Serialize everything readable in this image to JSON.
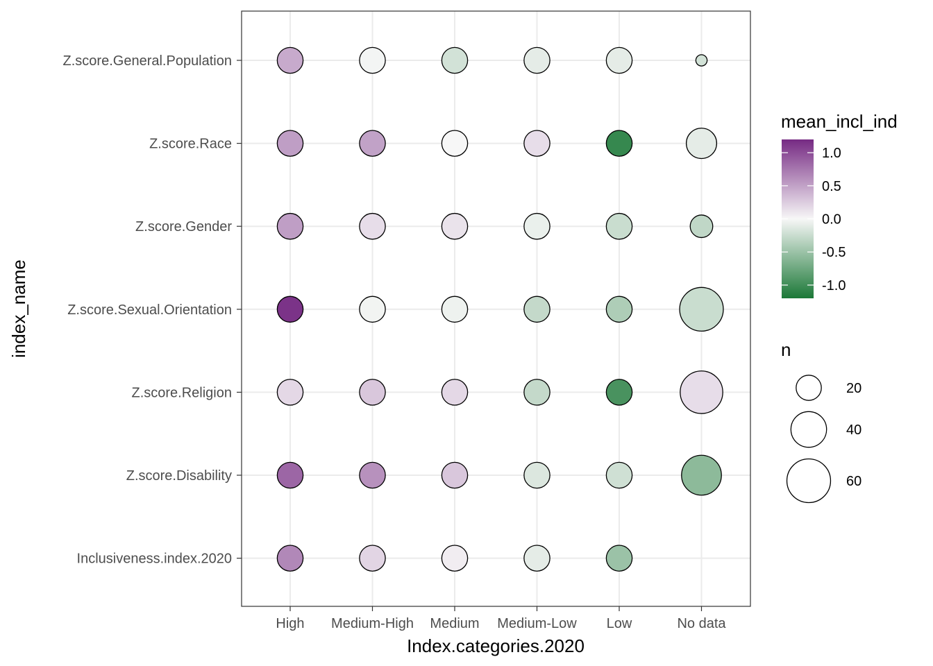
{
  "chart_data": {
    "type": "scatter",
    "title": "",
    "xlabel": "Index.categories.2020",
    "ylabel": "index_name",
    "x_categories": [
      "High",
      "Medium-High",
      "Medium",
      "Medium-Low",
      "Low",
      "No data"
    ],
    "y_categories": [
      "Z.score.General.Population",
      "Z.score.Race",
      "Z.score.Gender",
      "Z.score.Sexual.Orientation",
      "Z.score.Religion",
      "Z.score.Disability",
      "Inclusiveness.index.2020"
    ],
    "grid": true,
    "color_legend": {
      "title": "mean_incl_ind",
      "ticks": [
        1.0,
        0.5,
        0.0,
        -0.5,
        -1.0
      ],
      "tick_labels": [
        "1.0",
        "0.5",
        "0.0",
        "-0.5",
        "-1.0"
      ],
      "range": [
        -1.2,
        1.2
      ],
      "low_color": "#1b7837",
      "mid_color": "#f7f7f7",
      "high_color": "#762a83"
    },
    "size_legend": {
      "title": "n",
      "values": [
        20,
        40,
        60
      ],
      "labels": [
        "20",
        "40",
        "60"
      ],
      "max_n": 64
    },
    "points": [
      {
        "x": "High",
        "y": "Z.score.General.Population",
        "mean_incl_ind": 0.45,
        "n": 21
      },
      {
        "x": "Medium-High",
        "y": "Z.score.General.Population",
        "mean_incl_ind": -0.02,
        "n": 21
      },
      {
        "x": "Medium",
        "y": "Z.score.General.Population",
        "mean_incl_ind": -0.2,
        "n": 21
      },
      {
        "x": "Medium-Low",
        "y": "Z.score.General.Population",
        "mean_incl_ind": -0.1,
        "n": 21
      },
      {
        "x": "Low",
        "y": "Z.score.General.Population",
        "mean_incl_ind": -0.1,
        "n": 21
      },
      {
        "x": "No data",
        "y": "Z.score.General.Population",
        "mean_incl_ind": -0.2,
        "n": 4
      },
      {
        "x": "High",
        "y": "Z.score.Race",
        "mean_incl_ind": 0.52,
        "n": 21
      },
      {
        "x": "Medium-High",
        "y": "Z.score.Race",
        "mean_incl_ind": 0.5,
        "n": 21
      },
      {
        "x": "Medium",
        "y": "Z.score.Race",
        "mean_incl_ind": 0.0,
        "n": 21
      },
      {
        "x": "Medium-Low",
        "y": "Z.score.Race",
        "mean_incl_ind": 0.15,
        "n": 21
      },
      {
        "x": "Low",
        "y": "Z.score.Race",
        "mean_incl_ind": -1.05,
        "n": 21
      },
      {
        "x": "No data",
        "y": "Z.score.Race",
        "mean_incl_ind": -0.1,
        "n": 29
      },
      {
        "x": "High",
        "y": "Z.score.Gender",
        "mean_incl_ind": 0.52,
        "n": 21
      },
      {
        "x": "Medium-High",
        "y": "Z.score.Gender",
        "mean_incl_ind": 0.15,
        "n": 21
      },
      {
        "x": "Medium",
        "y": "Z.score.Gender",
        "mean_incl_ind": 0.12,
        "n": 21
      },
      {
        "x": "Medium-Low",
        "y": "Z.score.Gender",
        "mean_incl_ind": -0.07,
        "n": 21
      },
      {
        "x": "Low",
        "y": "Z.score.Gender",
        "mean_incl_ind": -0.25,
        "n": 21
      },
      {
        "x": "No data",
        "y": "Z.score.Gender",
        "mean_incl_ind": -0.3,
        "n": 16
      },
      {
        "x": "High",
        "y": "Z.score.Sexual.Orientation",
        "mean_incl_ind": 1.15,
        "n": 21
      },
      {
        "x": "Medium-High",
        "y": "Z.score.Sexual.Orientation",
        "mean_incl_ind": -0.03,
        "n": 21
      },
      {
        "x": "Medium",
        "y": "Z.score.Sexual.Orientation",
        "mean_incl_ind": -0.05,
        "n": 21
      },
      {
        "x": "Medium-Low",
        "y": "Z.score.Sexual.Orientation",
        "mean_incl_ind": -0.28,
        "n": 21
      },
      {
        "x": "Low",
        "y": "Z.score.Sexual.Orientation",
        "mean_incl_ind": -0.4,
        "n": 21
      },
      {
        "x": "No data",
        "y": "Z.score.Sexual.Orientation",
        "mean_incl_ind": -0.25,
        "n": 60
      },
      {
        "x": "High",
        "y": "Z.score.Religion",
        "mean_incl_ind": 0.18,
        "n": 21
      },
      {
        "x": "Medium-High",
        "y": "Z.score.Religion",
        "mean_incl_ind": 0.28,
        "n": 21
      },
      {
        "x": "Medium",
        "y": "Z.score.Religion",
        "mean_incl_ind": 0.18,
        "n": 21
      },
      {
        "x": "Medium-Low",
        "y": "Z.score.Religion",
        "mean_incl_ind": -0.28,
        "n": 21
      },
      {
        "x": "Low",
        "y": "Z.score.Religion",
        "mean_incl_ind": -0.95,
        "n": 21
      },
      {
        "x": "No data",
        "y": "Z.score.Religion",
        "mean_incl_ind": 0.15,
        "n": 57
      },
      {
        "x": "High",
        "y": "Z.score.Disability",
        "mean_incl_ind": 0.85,
        "n": 21
      },
      {
        "x": "Medium-High",
        "y": "Z.score.Disability",
        "mean_incl_ind": 0.6,
        "n": 21
      },
      {
        "x": "Medium",
        "y": "Z.score.Disability",
        "mean_incl_ind": 0.28,
        "n": 21
      },
      {
        "x": "Medium-Low",
        "y": "Z.score.Disability",
        "mean_incl_ind": -0.15,
        "n": 21
      },
      {
        "x": "Low",
        "y": "Z.score.Disability",
        "mean_incl_ind": -0.22,
        "n": 21
      },
      {
        "x": "No data",
        "y": "Z.score.Disability",
        "mean_incl_ind": -0.58,
        "n": 50
      },
      {
        "x": "High",
        "y": "Inclusiveness.index.2020",
        "mean_incl_ind": 0.65,
        "n": 21
      },
      {
        "x": "Medium-High",
        "y": "Inclusiveness.index.2020",
        "mean_incl_ind": 0.2,
        "n": 21
      },
      {
        "x": "Medium",
        "y": "Inclusiveness.index.2020",
        "mean_incl_ind": 0.06,
        "n": 21
      },
      {
        "x": "Medium-Low",
        "y": "Inclusiveness.index.2020",
        "mean_incl_ind": -0.1,
        "n": 21
      },
      {
        "x": "Low",
        "y": "Inclusiveness.index.2020",
        "mean_incl_ind": -0.5,
        "n": 21
      }
    ]
  }
}
